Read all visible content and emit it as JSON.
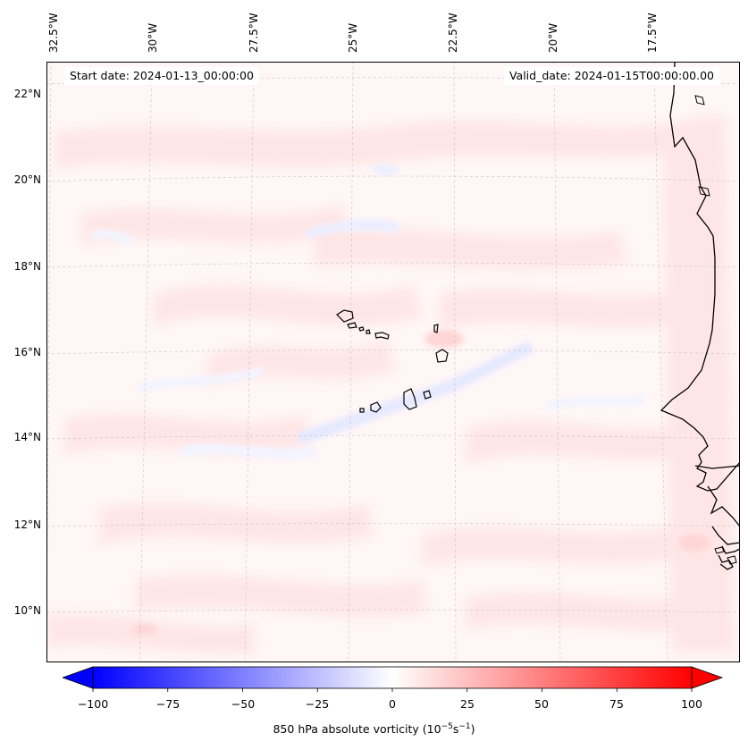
{
  "header": {
    "start_date": "Start date: 2024-01-13_00:00:00",
    "valid_date": "Valid_date: 2024-01-15T00:00:00.00"
  },
  "map": {
    "longitude_labels": [
      "32.5°W",
      "30°W",
      "27.5°W",
      "25°W",
      "22.5°W",
      "20°W",
      "17.5°W"
    ],
    "latitude_labels": [
      "22°N",
      "20°N",
      "18°N",
      "16°N",
      "14°N",
      "12°N",
      "10°N"
    ],
    "gridlines": true,
    "field": "850 hPa absolute vorticity",
    "features": [
      "cape-verde-islands",
      "west-african-coastline"
    ]
  },
  "colorbar": {
    "ticks": [
      "−100",
      "−75",
      "−50",
      "−25",
      "0",
      "25",
      "50",
      "75",
      "100"
    ],
    "label_prefix": "850 hPa absolute vorticity (10",
    "label_exp1": "−5",
    "label_mid": "s",
    "label_exp2": "−1",
    "label_suffix": ")",
    "range": [
      -100,
      100
    ],
    "extend": "both",
    "colormap": "bwr",
    "color_min": "#0000ff",
    "color_mid": "#ffffff",
    "color_max": "#ff0000"
  }
}
